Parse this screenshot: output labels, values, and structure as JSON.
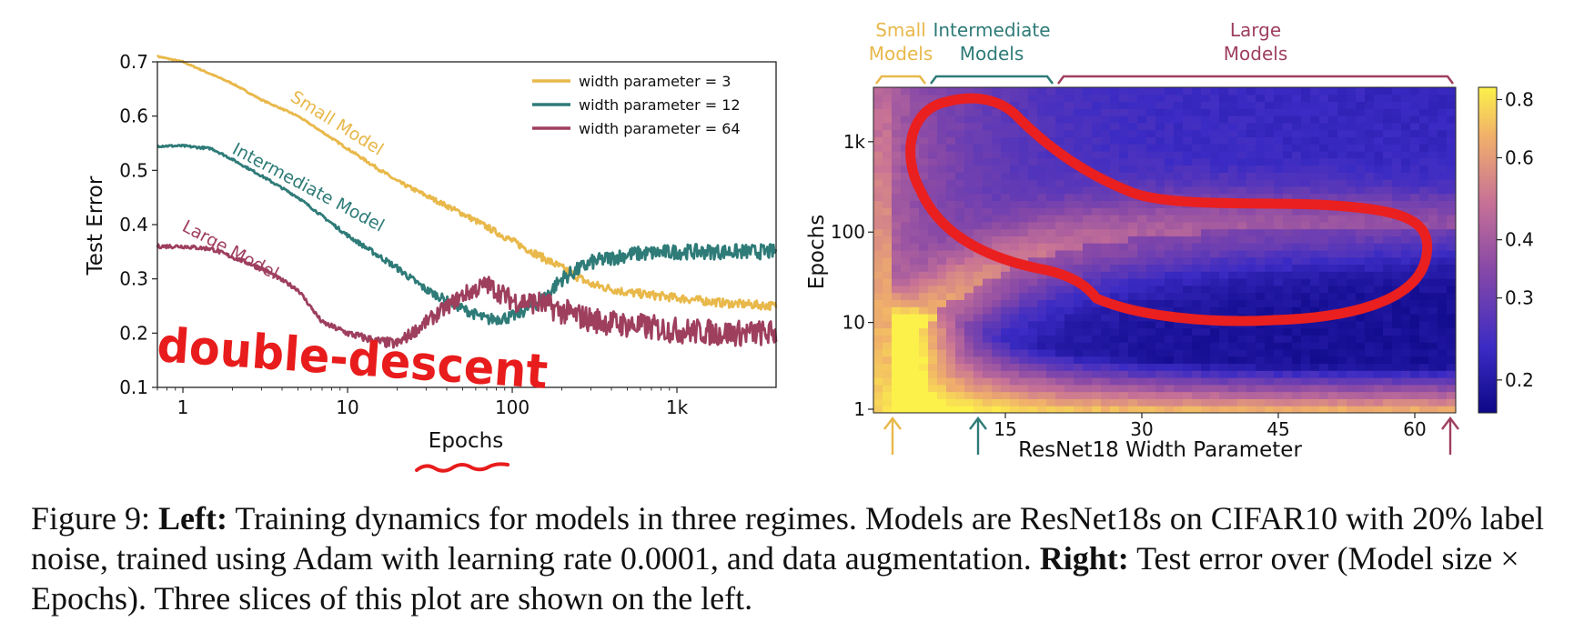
{
  "colors": {
    "small": "#E8B84A",
    "intermediate": "#2E7B78",
    "large": "#9E3F5E",
    "annotation": "#E81C1C"
  },
  "chart_data": [
    {
      "type": "line",
      "title": "",
      "xlabel": "Epochs",
      "ylabel": "Test Error",
      "xscale": "log",
      "xlim": [
        0.7,
        4000
      ],
      "ylim": [
        0.1,
        0.7
      ],
      "x_ticks": [
        1,
        10,
        100,
        1000
      ],
      "x_tick_labels": [
        "1",
        "10",
        "100",
        "1k"
      ],
      "y_ticks": [
        0.1,
        0.2,
        0.3,
        0.4,
        0.5,
        0.6,
        0.7
      ],
      "y_tick_labels": [
        "0.1",
        "0.2",
        "0.3",
        "0.4",
        "0.5",
        "0.6",
        "0.7"
      ],
      "legend_position": "top-right",
      "grid": false,
      "series": [
        {
          "name": "width parameter = 3",
          "color_key": "small",
          "noise": 0.004,
          "x": [
            0.7,
            1,
            2,
            3,
            5,
            10,
            20,
            50,
            100,
            200,
            300,
            500,
            1000,
            2000,
            4000
          ],
          "y": [
            0.71,
            0.7,
            0.66,
            0.63,
            0.6,
            0.54,
            0.48,
            0.42,
            0.37,
            0.32,
            0.29,
            0.275,
            0.265,
            0.255,
            0.25
          ]
        },
        {
          "name": "width parameter = 12",
          "color_key": "intermediate",
          "noise": 0.007,
          "x": [
            0.7,
            1,
            1.5,
            2,
            3,
            5,
            10,
            20,
            30,
            50,
            70,
            100,
            150,
            200,
            300,
            500,
            1000,
            2000,
            4000
          ],
          "y": [
            0.545,
            0.545,
            0.54,
            0.52,
            0.49,
            0.45,
            0.38,
            0.32,
            0.28,
            0.245,
            0.225,
            0.23,
            0.26,
            0.3,
            0.33,
            0.345,
            0.35,
            0.35,
            0.35
          ]
        },
        {
          "name": "width parameter = 64",
          "color_key": "large",
          "noise": 0.012,
          "x": [
            0.7,
            1,
            1.5,
            2,
            3,
            5,
            7,
            10,
            15,
            20,
            30,
            50,
            70,
            100,
            150,
            200,
            300,
            500,
            1000,
            2000,
            4000
          ],
          "y": [
            0.36,
            0.36,
            0.355,
            0.34,
            0.32,
            0.28,
            0.22,
            0.2,
            0.185,
            0.18,
            0.22,
            0.27,
            0.29,
            0.26,
            0.255,
            0.24,
            0.225,
            0.215,
            0.205,
            0.2,
            0.2
          ]
        }
      ],
      "annotations": [
        {
          "text": "Small Model",
          "color_key": "small"
        },
        {
          "text": "Intermediate Model",
          "color_key": "intermediate"
        },
        {
          "text": "Large Model",
          "color_key": "large"
        },
        {
          "text": "double-descent",
          "color_key": "annotation"
        }
      ]
    },
    {
      "type": "heatmap",
      "xlabel": "ResNet18 Width Parameter",
      "ylabel": "Epochs",
      "x_range": [
        1,
        64
      ],
      "x_ticks": [
        15,
        30,
        45,
        60
      ],
      "y_scale": "log",
      "y_range": [
        1,
        4000
      ],
      "y_ticks": [
        1,
        10,
        100,
        1000
      ],
      "y_tick_labels": [
        "1",
        "10",
        "100",
        "1k"
      ],
      "colorbar": {
        "ticks": [
          0.2,
          0.3,
          0.4,
          0.6,
          0.8
        ],
        "tick_labels": [
          "0.2",
          "0.3",
          "0.4",
          "0.6",
          "0.8"
        ],
        "range": [
          0.17,
          0.85
        ]
      },
      "value": "Test error",
      "groups": [
        {
          "label_lines": [
            "Small",
            "Models"
          ],
          "color_key": "small",
          "width_range": [
            1,
            6
          ]
        },
        {
          "label_lines": [
            "Intermediate",
            "Models"
          ],
          "color_key": "intermediate",
          "width_range": [
            7,
            20
          ]
        },
        {
          "label_lines": [
            "Large",
            "Models"
          ],
          "color_key": "large",
          "width_range": [
            21,
            64
          ]
        }
      ],
      "slice_markers": [
        {
          "width": 3,
          "color_key": "small"
        },
        {
          "width": 12,
          "color_key": "intermediate"
        },
        {
          "width": 64,
          "color_key": "large"
        }
      ]
    }
  ],
  "caption": {
    "lead": "Figure 9: ",
    "left_bold": "Left:",
    "part1": " Training dynamics for models in three regimes. Models are ResNet18s on CIFAR10 with 20% label noise, trained using Adam with learning rate 0.0001, and data augmentation. ",
    "right_bold": "Right:",
    "part2": " Test error over (Model size × Epochs). Three slices of this plot are shown on the left."
  }
}
